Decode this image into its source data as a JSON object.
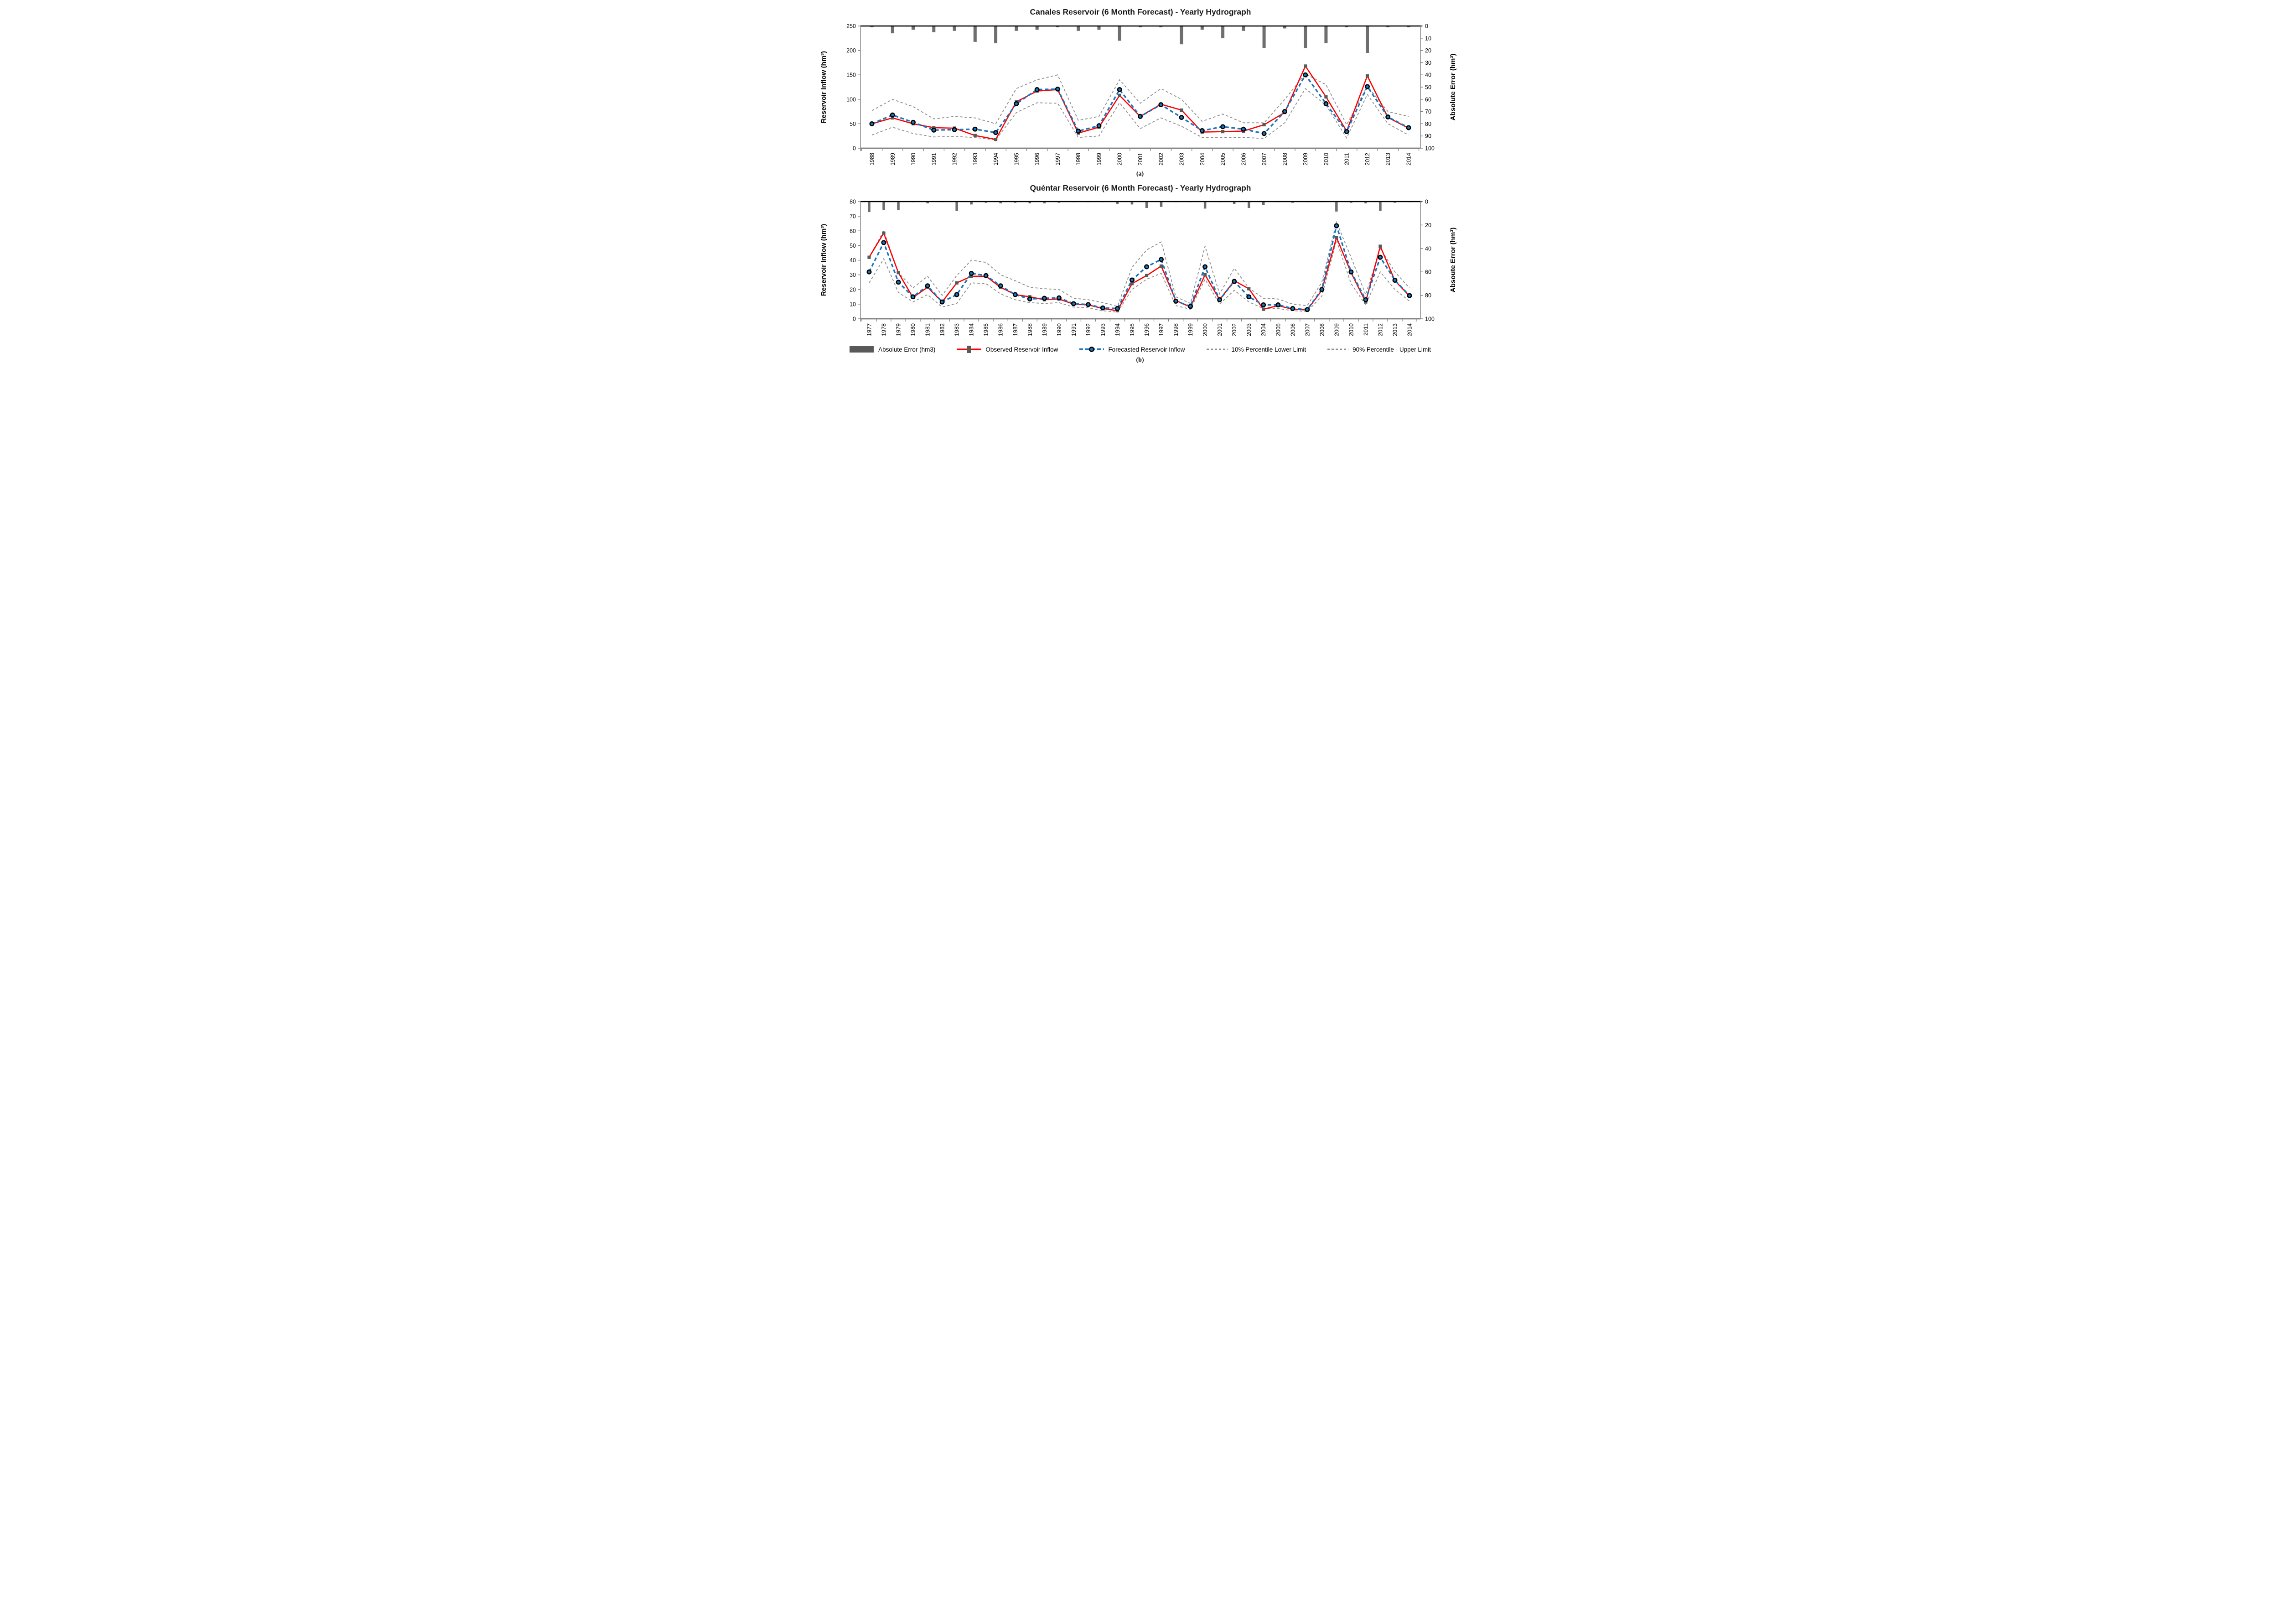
{
  "page": {
    "caption_a": "(a)",
    "caption_b": "(b)",
    "background": "#FFFFFF"
  },
  "colors": {
    "observed_red": "#FF0000",
    "forecast_blue": "#1B75BC",
    "error_bar_gray": "#6E6E6E",
    "square_marker_gray": "#595959",
    "percentile_gray": "#8F8F8F",
    "axis_gray": "#808080",
    "top_axis_black": "#000000",
    "text_black": "#1A1A1A"
  },
  "legend": {
    "items": [
      {
        "label": "Absolute Error (hm3)",
        "icon": "gray-rect-swatch"
      },
      {
        "label": "Observed Reservoir Inflow",
        "icon": "red-line-square-marker"
      },
      {
        "label": "Forecasted Reservoir Inflow",
        "icon": "blue-dashed-circle-marker"
      },
      {
        "label": "10% Percentile Lower Limit",
        "icon": "gray-dashed-line"
      },
      {
        "label": "90% Percentile - Upper Limit",
        "icon": "gray-dashed-line"
      }
    ]
  },
  "chart_data": [
    {
      "id": "a",
      "type": "line",
      "subtype": "combo line + hanging error bars",
      "title": "Canales Reservoir (6 Month Forecast) - Yearly Hydrograph",
      "left_axis": {
        "label": "Reservoir Inflow (hm³)",
        "min": 0,
        "max": 250,
        "ticks": [
          0,
          50,
          100,
          150,
          200,
          250
        ]
      },
      "right_axis": {
        "label": "Absolute Error (hm³)",
        "min": 0,
        "max": 100,
        "ticks": [
          0,
          10,
          20,
          30,
          40,
          50,
          60,
          70,
          80,
          90,
          100
        ],
        "inverted": true
      },
      "grid": "off",
      "years": [
        1988,
        1989,
        1990,
        1991,
        1992,
        1993,
        1994,
        1995,
        1996,
        1997,
        1998,
        1999,
        2000,
        2001,
        2002,
        2003,
        2004,
        2005,
        2006,
        2007,
        2008,
        2009,
        2010,
        2011,
        2012,
        2013,
        2014
      ],
      "series": {
        "absolute_error": [
          1,
          6,
          3,
          5,
          4,
          13,
          14,
          4,
          3,
          1,
          4,
          3,
          12,
          1,
          1,
          15,
          3,
          10,
          4,
          18,
          2,
          18,
          14,
          1,
          22,
          1,
          1
        ],
        "observed": [
          50,
          62,
          50,
          42,
          41,
          26,
          18,
          95,
          117,
          120,
          31,
          43,
          108,
          65,
          90,
          78,
          33,
          34,
          35,
          48,
          73,
          168,
          105,
          35,
          148,
          63,
          41
        ],
        "forecasted": [
          50,
          68,
          53,
          37,
          38,
          39,
          32,
          91,
          120,
          121,
          35,
          46,
          120,
          65,
          89,
          63,
          36,
          44,
          39,
          30,
          75,
          150,
          91,
          34,
          126,
          64,
          42
        ],
        "lower_10": [
          27,
          43,
          30,
          23,
          24,
          22,
          17,
          73,
          93,
          92,
          22,
          25,
          93,
          40,
          62,
          45,
          22,
          22,
          22,
          20,
          52,
          122,
          88,
          21,
          110,
          50,
          27
        ],
        "upper_90": [
          77,
          100,
          85,
          60,
          65,
          62,
          50,
          122,
          140,
          150,
          57,
          65,
          140,
          92,
          122,
          100,
          55,
          70,
          52,
          52,
          100,
          152,
          130,
          48,
          127,
          75,
          65
        ]
      }
    },
    {
      "id": "b",
      "type": "line",
      "subtype": "combo line + hanging error bars",
      "title": "Quéntar Reservoir (6 Month Forecast) - Yearly Hydrograph",
      "left_axis": {
        "label": "Reservoir Inflow (hm³)",
        "min": 0,
        "max": 80,
        "ticks": [
          0,
          10,
          20,
          30,
          40,
          50,
          60,
          70,
          80
        ]
      },
      "right_axis": {
        "label": "Absoute Error (hm³)",
        "min": 0,
        "max": 100,
        "ticks": [
          0,
          20,
          40,
          60,
          80,
          100
        ],
        "inverted": true
      },
      "grid": "off",
      "years": [
        1977,
        1978,
        1979,
        1980,
        1981,
        1982,
        1983,
        1984,
        1985,
        1986,
        1987,
        1988,
        1989,
        1990,
        1991,
        1992,
        1993,
        1994,
        1995,
        1996,
        1997,
        1998,
        1999,
        2000,
        2001,
        2002,
        2003,
        2004,
        2005,
        2006,
        2007,
        2008,
        2009,
        2010,
        2011,
        2012,
        2013,
        2014
      ],
      "series": {
        "absolute_error": [
          9,
          7,
          7,
          0.5,
          1.5,
          0.5,
          8,
          2.5,
          1,
          1.5,
          1,
          1.5,
          1.5,
          1,
          0.5,
          0.5,
          0.5,
          2,
          2.5,
          5.5,
          4.5,
          0.5,
          0.5,
          6,
          0.5,
          2,
          5.5,
          3,
          0.5,
          1,
          0.5,
          0.5,
          8.5,
          1,
          1.5,
          8,
          1,
          0.5
        ],
        "observed": [
          42,
          58.5,
          31.5,
          14.5,
          21.5,
          11.5,
          24.5,
          29,
          29,
          21.5,
          16.5,
          15,
          13,
          13.5,
          10,
          9.5,
          7,
          5.5,
          24,
          29.5,
          36,
          12.5,
          8,
          30,
          13,
          26,
          20.5,
          6.5,
          9,
          6.5,
          6,
          19.5,
          55.5,
          31.5,
          11.5,
          49.5,
          26,
          15.5
        ],
        "forecasted": [
          32,
          52,
          25,
          15,
          22.5,
          11.5,
          16.5,
          31,
          29.5,
          22.5,
          16.5,
          13.5,
          14,
          14.3,
          10.3,
          9.7,
          7.4,
          7,
          26.5,
          35.5,
          40.5,
          12,
          8.5,
          35.5,
          13,
          25.5,
          15,
          9.5,
          9.5,
          7,
          6.3,
          20,
          63.5,
          32,
          13,
          42,
          26.3,
          15.8
        ],
        "lower_10": [
          24.5,
          41,
          18,
          11.5,
          16.5,
          8,
          10.5,
          24.5,
          24,
          17,
          13,
          11,
          10.5,
          11,
          8,
          7.5,
          5.5,
          4.5,
          20,
          27,
          31,
          9,
          6.5,
          27,
          10,
          19.5,
          11.5,
          7,
          7,
          5.5,
          5,
          15.5,
          53.5,
          24,
          9.5,
          32,
          20,
          12
        ],
        "upper_90": [
          42,
          60,
          31.5,
          21,
          29,
          16,
          29.5,
          40,
          38.5,
          30,
          26,
          21.5,
          20.5,
          20,
          14,
          13,
          11,
          8.5,
          35,
          47,
          52.5,
          15,
          10.5,
          49.5,
          17,
          34.5,
          21,
          14,
          13.5,
          10,
          9,
          25,
          66,
          42,
          16.5,
          48,
          32,
          21
        ]
      }
    }
  ]
}
